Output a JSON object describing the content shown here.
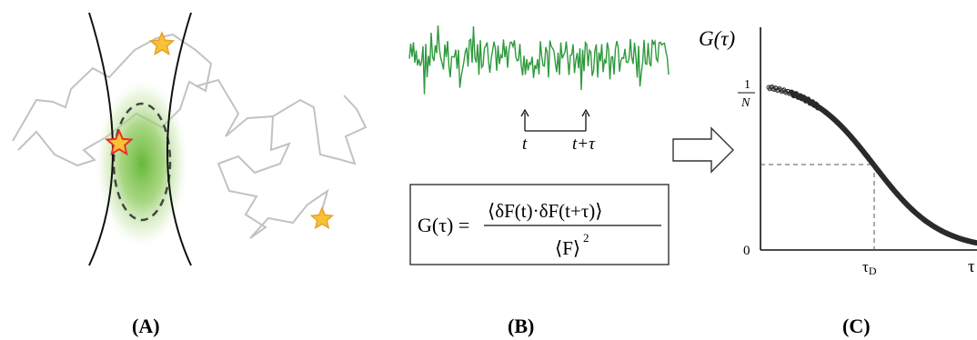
{
  "panels": {
    "a": {
      "label": "(A)"
    },
    "b": {
      "label": "(B)",
      "t_label": "t",
      "t_tau_label": "t+τ",
      "formula": {
        "lhs": "G(τ) =",
        "numerator": "⟨δF(t)·δF(t+τ)⟩",
        "denominator": "⟨F⟩",
        "exponent": "2"
      }
    },
    "c": {
      "label": "(C)",
      "y_axis_label": "G(τ)",
      "y_top_num": "1",
      "y_top_den": "N",
      "y_zero": "0",
      "x_tick_d": "τ",
      "x_tick_d_sub": "D",
      "x_axis_end": "τ"
    }
  },
  "colors": {
    "trace": "#2e9a3c",
    "focus_green": "#7cc242",
    "star_fill": "#f7c234",
    "star_edge": "#e8302a",
    "path_gray": "#bdbdbd",
    "curve": "#333333"
  },
  "chart_data": {
    "type": "scatter",
    "title": "",
    "xlabel": "τ",
    "ylabel": "G(τ)",
    "x_scale": "log",
    "x_ticks": [
      "τD"
    ],
    "y_ticks": [
      "0",
      "1/N"
    ],
    "y_range": [
      0,
      1.1
    ],
    "series": [
      {
        "description_shape": "sigmoidal decay",
        "x_relative_to_tauD": [
          0.01,
          0.02,
          0.05,
          0.1,
          0.2,
          0.5,
          1,
          2,
          5,
          10,
          20,
          50
        ],
        "y_relative_to_1overN": [
          0.99,
          0.98,
          0.95,
          0.91,
          0.83,
          0.67,
          0.5,
          0.33,
          0.17,
          0.09,
          0.05,
          0.02
        ]
      }
    ]
  }
}
